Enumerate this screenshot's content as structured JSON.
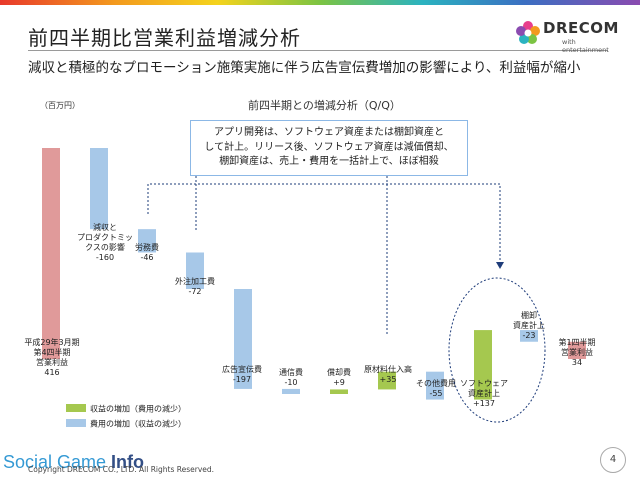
{
  "slide": {
    "title": "前四半期比営業利益増減分析",
    "subtitle": "減収と積極的なプロモーション施策実施に伴う広告宣伝費増加の影響により、利益幅が縮小",
    "page_number": "4",
    "copyright": "Copyright DRECOM CO., LTD. All Rights Reserved.",
    "watermark": {
      "part1": "Social Game ",
      "part2": "Info"
    }
  },
  "logo": {
    "word": "DRECOM",
    "tagline": "with entertainment"
  },
  "callout": "アプリ開発は、ソフトウェア資産または棚卸資産と\nして計上。リリース後、ソフトウェア資産は減価償却、\n棚卸資産は、売上・費用を一括計上で、ほぼ相殺",
  "colors": {
    "base": "#e09a9a",
    "increase": "#a5c84f",
    "decrease": "#a7c8e8",
    "highlight": "#1e3c7a"
  },
  "chart_data": {
    "type": "waterfall",
    "title": "前四半期との増減分析（Q/Q）",
    "unit": "（百万円）",
    "ylim": [
      0,
      450
    ],
    "items": [
      {
        "label": "平成29年3月期\n第4四半期\n営業利益",
        "value_text": "416",
        "value": 416,
        "kind": "base"
      },
      {
        "label": "減収と\nプロダクトミッ\nクスの影響",
        "value_text": "-160",
        "value": -160,
        "kind": "decrease"
      },
      {
        "label": "労務費",
        "value_text": "-46",
        "value": -46,
        "kind": "decrease"
      },
      {
        "label": "外注加工費",
        "value_text": "-72",
        "value": -72,
        "kind": "decrease"
      },
      {
        "label": "広告宣伝費",
        "value_text": "-197",
        "value": -197,
        "kind": "decrease"
      },
      {
        "label": "通信費",
        "value_text": "-10",
        "value": -10,
        "kind": "decrease"
      },
      {
        "label": "償却費",
        "value_text": "+9",
        "value": 9,
        "kind": "increase"
      },
      {
        "label": "原材料仕入高",
        "value_text": "+35",
        "value": 35,
        "kind": "increase"
      },
      {
        "label": "その他費用",
        "value_text": "-55",
        "value": -55,
        "kind": "decrease"
      },
      {
        "label": "ソフトウェア\n資産計上",
        "value_text": "+137",
        "value": 137,
        "kind": "increase"
      },
      {
        "label": "棚卸\n資産計上",
        "value_text": "-23",
        "value": -23,
        "kind": "decrease"
      },
      {
        "label": "第1四半期\n営業利益",
        "value_text": "34",
        "value": 34,
        "kind": "base"
      }
    ],
    "legend": [
      {
        "label": "収益の増加（費用の減少）",
        "kind": "increase"
      },
      {
        "label": "費用の増加（収益の減少）",
        "kind": "decrease"
      }
    ]
  }
}
